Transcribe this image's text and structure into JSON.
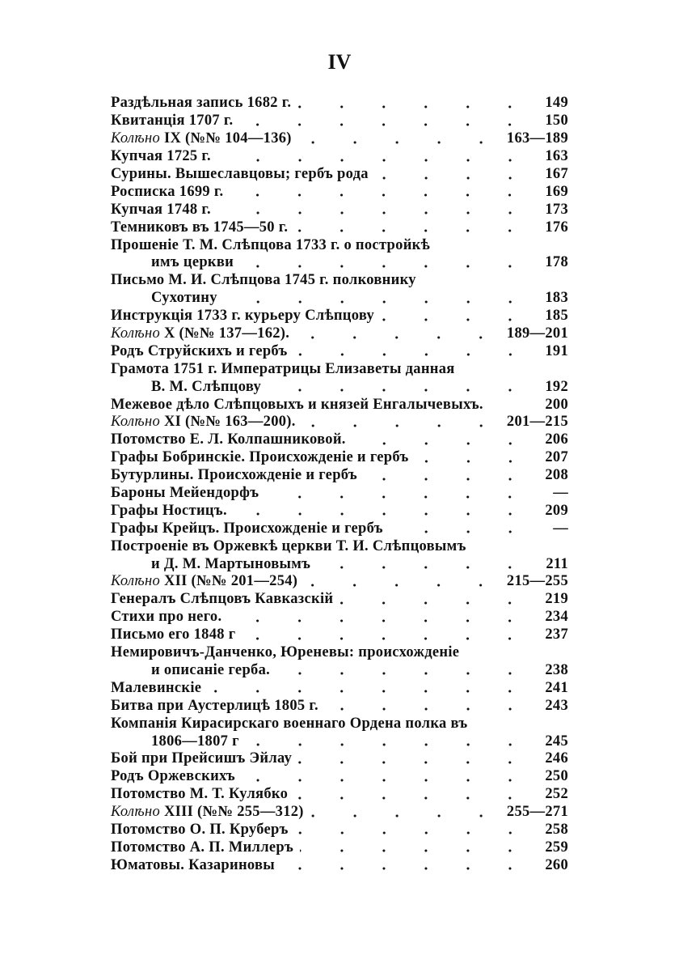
{
  "folio": "IV",
  "lines": [
    {
      "prefix": "",
      "text": "Раздѣльная запись 1682 г.",
      "page": "149"
    },
    {
      "prefix": "",
      "text": "Квитанція 1707 г.",
      "page": "150"
    },
    {
      "prefix": "Колѣно",
      "text": " IX (№№ 104—136)",
      "page": "163—189"
    },
    {
      "prefix": "",
      "text": "Купчая 1725 г.",
      "page": "163"
    },
    {
      "prefix": "",
      "text": "Сурины. Вышеславцовы; гербъ рода",
      "page": "167"
    },
    {
      "prefix": "",
      "text": "Росписка 1699 г.",
      "page": "169"
    },
    {
      "prefix": "",
      "text": "Купчая 1748 г.",
      "page": "173"
    },
    {
      "prefix": "",
      "text": "Темниковъ въ 1745—50 г.",
      "page": "176"
    },
    {
      "prefix": "",
      "text": "Прошеніе Т. М. Слѣпцова 1733 г. о постройкѣ",
      "page": "",
      "noleader": true
    },
    {
      "prefix": "",
      "text": "имъ церкви",
      "page": "178",
      "indent": true
    },
    {
      "prefix": "",
      "text": "Письмо М. И. Слѣпцова 1745 г. полковнику",
      "page": "",
      "noleader": true
    },
    {
      "prefix": "",
      "text": "Сухотину",
      "page": "183",
      "indent": true
    },
    {
      "prefix": "",
      "text": "Инструкція 1733 г. курьеру Слѣпцову",
      "page": "185"
    },
    {
      "prefix": "Колѣно",
      "text": " X (№№ 137—162).",
      "page": "189—201"
    },
    {
      "prefix": "",
      "text": "Родъ Струйскихъ и гербъ",
      "page": "191"
    },
    {
      "prefix": "",
      "text": "Грамота 1751 г. Императрицы Елизаветы данная",
      "page": "",
      "noleader": true
    },
    {
      "prefix": "",
      "text": "В. М. Слѣпцову",
      "page": "192",
      "indent": true
    },
    {
      "prefix": "",
      "text": "Межевое дѣло Слѣпцовыхъ и князей Енгалычевыхъ.",
      "page": "200",
      "noleader": true
    },
    {
      "prefix": "Колѣно",
      "text": " XI (№№ 163—200).",
      "page": "201—215"
    },
    {
      "prefix": "",
      "text": "Потомство Е. Л. Колпашниковой.",
      "page": "206"
    },
    {
      "prefix": "",
      "text": "Графы Бобринскіе. Происхожденіе и гербъ",
      "page": "207"
    },
    {
      "prefix": "",
      "text": "Бутурлины. Происхожденіе и гербъ",
      "page": "208"
    },
    {
      "prefix": "",
      "text": "Бароны Мейендорфъ",
      "page": "—"
    },
    {
      "prefix": "",
      "text": "Графы Ностицъ.",
      "page": "209"
    },
    {
      "prefix": "",
      "text": "Графы Крейцъ. Происхожденіе и гербъ",
      "page": "—"
    },
    {
      "prefix": "",
      "text": "Построеніе въ Оржевкѣ церкви Т. И. Слѣпцовымъ",
      "page": "",
      "noleader": true
    },
    {
      "prefix": "",
      "text": "и Д. М. Мартыновымъ",
      "page": "211",
      "indent": true
    },
    {
      "prefix": "Колѣно",
      "text": " XII (№№ 201—254)",
      "page": "215—255"
    },
    {
      "prefix": "",
      "text": "Генералъ Слѣпцовъ Кавказскій",
      "page": "219"
    },
    {
      "prefix": "",
      "text": "Стихи про него.",
      "page": "234"
    },
    {
      "prefix": "",
      "text": "Письмо его 1848 г",
      "page": "237"
    },
    {
      "prefix": "",
      "text": "Немировичъ-Данченко, Юреневы: происхожденіе",
      "page": "",
      "noleader": true
    },
    {
      "prefix": "",
      "text": "и описаніе герба.",
      "page": "238",
      "indent": true
    },
    {
      "prefix": "",
      "text": "Малевинскіе",
      "page": "241"
    },
    {
      "prefix": "",
      "text": "Битва при Аустерлицѣ 1805 г.",
      "page": "243"
    },
    {
      "prefix": "",
      "text": "Компанія Кирасирскаго военнаго Ордена полка въ",
      "page": "",
      "noleader": true
    },
    {
      "prefix": "",
      "text": "1806—1807 г",
      "page": "245",
      "indent": true
    },
    {
      "prefix": "",
      "text": "Бой при Прейсишъ Эйлау",
      "page": "246"
    },
    {
      "prefix": "",
      "text": "Родъ Оржевскихъ",
      "page": "250"
    },
    {
      "prefix": "",
      "text": "Потомство М. Т. Кулябко",
      "page": "252"
    },
    {
      "prefix": "Колѣно",
      "text": " XIII (№№ 255—312)",
      "page": "255—271"
    },
    {
      "prefix": "",
      "text": "Потомство О. П. Круберъ",
      "page": "258"
    },
    {
      "prefix": "",
      "text": "Потомство А. П. Миллеръ",
      "page": "259"
    },
    {
      "prefix": "",
      "text": "Юматовы. Казариновы",
      "page": "260"
    }
  ]
}
